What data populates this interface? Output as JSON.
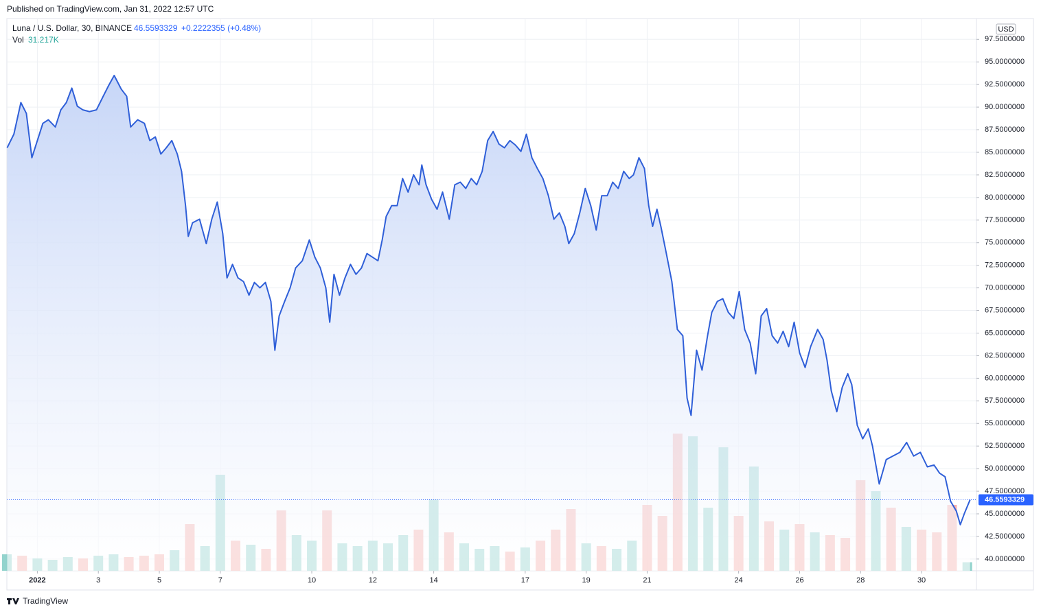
{
  "published": "Published on TradingView.com, Jan 31, 2022 12:57 UTC",
  "footer": "TradingView",
  "chart_data": {
    "type": "area",
    "currency": "USD",
    "change_label": "+0.2222355 (+0.48%)",
    "last_price": 46.5593329,
    "xlim": [
      -1,
      30.8
    ],
    "ylim": [
      38.7,
      99.8
    ],
    "grid": true,
    "xticks": [
      {
        "value": 0,
        "label": "2022"
      },
      {
        "value": 2,
        "label": "3"
      },
      {
        "value": 4,
        "label": "5"
      },
      {
        "value": 6,
        "label": "7"
      },
      {
        "value": 9,
        "label": "10"
      },
      {
        "value": 11,
        "label": "12"
      },
      {
        "value": 13,
        "label": "14"
      },
      {
        "value": 16,
        "label": "17"
      },
      {
        "value": 18,
        "label": "19"
      },
      {
        "value": 20,
        "label": "21"
      },
      {
        "value": 23,
        "label": "24"
      },
      {
        "value": 25,
        "label": "26"
      },
      {
        "value": 27,
        "label": "28"
      },
      {
        "value": 29,
        "label": "30"
      }
    ],
    "yticks": [
      {
        "value": 40,
        "label": "40.0000000"
      },
      {
        "value": 42.5,
        "label": "42.5000000"
      },
      {
        "value": 45,
        "label": "45.0000000"
      },
      {
        "value": 47.5,
        "label": "47.5000000"
      },
      {
        "value": 50,
        "label": "50.0000000"
      },
      {
        "value": 52.5,
        "label": "52.5000000"
      },
      {
        "value": 55,
        "label": "55.0000000"
      },
      {
        "value": 57.5,
        "label": "57.5000000"
      },
      {
        "value": 60,
        "label": "60.0000000"
      },
      {
        "value": 62.5,
        "label": "62.5000000"
      },
      {
        "value": 65,
        "label": "65.0000000"
      },
      {
        "value": 67.5,
        "label": "67.5000000"
      },
      {
        "value": 70,
        "label": "70.0000000"
      },
      {
        "value": 72.5,
        "label": "72.5000000"
      },
      {
        "value": 75,
        "label": "75.0000000"
      },
      {
        "value": 77.5,
        "label": "77.5000000"
      },
      {
        "value": 80,
        "label": "80.0000000"
      },
      {
        "value": 82.5,
        "label": "82.5000000"
      },
      {
        "value": 85,
        "label": "85.0000000"
      },
      {
        "value": 87.5,
        "label": "87.5000000"
      },
      {
        "value": 90,
        "label": "90.0000000"
      },
      {
        "value": 92.5,
        "label": "92.5000000"
      },
      {
        "value": 95,
        "label": "95.0000000"
      },
      {
        "value": 97.5,
        "label": "97.5000000"
      }
    ],
    "x": [
      -0.99,
      -0.77,
      -0.54,
      -0.36,
      -0.18,
      0,
      0.18,
      0.36,
      0.59,
      0.77,
      0.95,
      1.13,
      1.31,
      1.49,
      1.71,
      1.94,
      2.16,
      2.34,
      2.52,
      2.75,
      2.93,
      3.06,
      3.29,
      3.51,
      3.69,
      3.87,
      4.05,
      4.23,
      4.41,
      4.59,
      4.73,
      4.86,
      4.95,
      5.09,
      5.32,
      5.54,
      5.72,
      5.9,
      6.08,
      6.22,
      6.4,
      6.58,
      6.76,
      6.94,
      7.12,
      7.3,
      7.48,
      7.66,
      7.79,
      7.93,
      8.11,
      8.29,
      8.47,
      8.69,
      8.92,
      9.1,
      9.28,
      9.46,
      9.59,
      9.73,
      9.91,
      10.09,
      10.27,
      10.45,
      10.63,
      10.81,
      10.99,
      11.17,
      11.31,
      11.44,
      11.62,
      11.8,
      11.98,
      12.16,
      12.34,
      12.52,
      12.61,
      12.75,
      12.93,
      13.11,
      13.29,
      13.51,
      13.69,
      13.87,
      14.05,
      14.23,
      14.41,
      14.59,
      14.77,
      14.95,
      15.14,
      15.32,
      15.5,
      15.68,
      15.86,
      16.04,
      16.22,
      16.4,
      16.58,
      16.76,
      16.94,
      17.12,
      17.3,
      17.43,
      17.61,
      17.79,
      17.97,
      18.15,
      18.33,
      18.51,
      18.69,
      18.87,
      19.05,
      19.23,
      19.41,
      19.55,
      19.73,
      19.91,
      20.05,
      20.18,
      20.32,
      20.45,
      20.63,
      20.81,
      20.99,
      21.17,
      21.31,
      21.44,
      21.62,
      21.8,
      21.98,
      22.12,
      22.3,
      22.48,
      22.66,
      22.84,
      23.02,
      23.2,
      23.38,
      23.56,
      23.74,
      23.92,
      24.1,
      24.28,
      24.46,
      24.64,
      24.82,
      25,
      25.18,
      25.36,
      25.59,
      25.77,
      25.9,
      26.04,
      26.22,
      26.4,
      26.58,
      26.71,
      26.89,
      27.07,
      27.25,
      27.39,
      27.61,
      27.84,
      28.06,
      28.29,
      28.51,
      28.74,
      28.96,
      29.19,
      29.41,
      29.59,
      29.77,
      29.95,
      30.14,
      30.27,
      30.41,
      30.59
    ],
    "series": [
      {
        "name": "Luna / U.S. Dollar, 30, BINANCE",
        "color": "#2f5fd8",
        "values": [
          85.5,
          87,
          90.5,
          89.3,
          84.4,
          86.3,
          88.2,
          88.6,
          87.8,
          89.7,
          90.5,
          92.1,
          90.1,
          89.7,
          89.5,
          89.7,
          91.2,
          92.4,
          93.5,
          92,
          91.2,
          87.8,
          88.6,
          88.2,
          86.3,
          86.7,
          84.8,
          85.5,
          86.3,
          84.8,
          82.9,
          79.1,
          75.7,
          77.2,
          77.6,
          74.9,
          77.6,
          79.5,
          76,
          71.1,
          72.6,
          71.1,
          70.7,
          69.2,
          70.6,
          70,
          70.6,
          68.5,
          63.1,
          66.9,
          68.5,
          70,
          72.2,
          73,
          75.3,
          73.4,
          72.2,
          70,
          66.2,
          71.5,
          69.2,
          71.1,
          72.6,
          71.5,
          72.2,
          73.8,
          73.4,
          73,
          75.3,
          77.9,
          79.1,
          79.1,
          82.1,
          80.6,
          82.5,
          81.4,
          83.6,
          81.4,
          79.8,
          78.7,
          80.6,
          77.6,
          81.4,
          81.7,
          81,
          82.1,
          81.4,
          82.9,
          86.3,
          87.3,
          85.9,
          85.5,
          86.3,
          85.8,
          85.1,
          87,
          84.4,
          83.2,
          82.1,
          80.2,
          77.6,
          78.3,
          76.8,
          74.9,
          76,
          78.3,
          81,
          79.1,
          76.4,
          80.2,
          80.2,
          81.7,
          81,
          82.9,
          82.1,
          82.5,
          84.4,
          83.2,
          79.1,
          76.8,
          78.7,
          76.8,
          73.8,
          70.7,
          65.4,
          64.7,
          57.8,
          55.9,
          63.1,
          60.9,
          64.7,
          67.3,
          68.5,
          68.8,
          67.3,
          66.6,
          69.6,
          65.4,
          63.9,
          60.5,
          66.9,
          67.7,
          64.7,
          63.9,
          65.2,
          63.5,
          66.2,
          62.8,
          61.2,
          63.5,
          65.4,
          64.3,
          62,
          58.6,
          56.3,
          59,
          60.5,
          59.3,
          54.8,
          53.3,
          54.4,
          52.5,
          48.3,
          51,
          51.4,
          51.8,
          52.9,
          51.4,
          51.8,
          50.2,
          50.4,
          49.5,
          49.1,
          46.4,
          45.3,
          43.8,
          45.1,
          46.5593329
        ]
      }
    ],
    "volume": {
      "name": "Vol",
      "value_label": "31.217K",
      "ylim": [
        0,
        500
      ],
      "x": [
        -1,
        -0.5,
        0,
        0.5,
        1,
        1.5,
        2,
        2.5,
        3,
        3.5,
        4,
        4.5,
        5,
        5.5,
        6,
        6.5,
        7,
        7.5,
        8,
        8.5,
        9,
        9.5,
        10,
        10.5,
        11,
        11.5,
        12,
        12.5,
        13,
        13.5,
        14,
        14.5,
        15,
        15.5,
        16,
        16.5,
        17,
        17.5,
        18,
        18.5,
        19,
        19.5,
        20,
        20.5,
        21,
        21.5,
        22,
        22.5,
        23,
        23.5,
        24,
        24.5,
        25,
        25.5,
        26,
        26.5,
        27,
        27.5,
        28,
        28.5,
        29,
        29.5,
        30,
        30.5
      ],
      "values": [
        60,
        55,
        45,
        40,
        50,
        45,
        55,
        60,
        50,
        55,
        60,
        75,
        170,
        90,
        350,
        110,
        95,
        80,
        220,
        130,
        110,
        220,
        100,
        90,
        110,
        100,
        130,
        150,
        260,
        140,
        100,
        80,
        90,
        70,
        85,
        110,
        150,
        225,
        100,
        90,
        80,
        110,
        240,
        200,
        500,
        490,
        230,
        450,
        200,
        380,
        180,
        150,
        170,
        140,
        130,
        120,
        330,
        290,
        230,
        160,
        150,
        140,
        240,
        31.217
      ],
      "colors": [
        "#80cbc4",
        "#f5a3a0",
        "#80cbc4",
        "#80cbc4",
        "#80cbc4",
        "#f5a3a0",
        "#80cbc4",
        "#80cbc4",
        "#f5a3a0",
        "#f5a3a0",
        "#f5a3a0",
        "#80cbc4",
        "#f5a3a0",
        "#80cbc4",
        "#80cbc4",
        "#f5a3a0",
        "#80cbc4",
        "#f5a3a0",
        "#f5a3a0",
        "#80cbc4",
        "#80cbc4",
        "#f5a3a0",
        "#80cbc4",
        "#80cbc4",
        "#80cbc4",
        "#80cbc4",
        "#80cbc4",
        "#f5a3a0",
        "#80cbc4",
        "#f5a3a0",
        "#80cbc4",
        "#80cbc4",
        "#80cbc4",
        "#f5a3a0",
        "#80cbc4",
        "#f5a3a0",
        "#f5a3a0",
        "#f5a3a0",
        "#80cbc4",
        "#f5a3a0",
        "#80cbc4",
        "#80cbc4",
        "#f5a3a0",
        "#f5a3a0",
        "#f5a3a0",
        "#80cbc4",
        "#80cbc4",
        "#80cbc4",
        "#f5a3a0",
        "#80cbc4",
        "#f5a3a0",
        "#80cbc4",
        "#f5a3a0",
        "#80cbc4",
        "#f5a3a0",
        "#f5a3a0",
        "#f5a3a0",
        "#80cbc4",
        "#f5a3a0",
        "#80cbc4",
        "#f5a3a0",
        "#f5a3a0",
        "#f5a3a0",
        "#80cbc4"
      ]
    }
  }
}
